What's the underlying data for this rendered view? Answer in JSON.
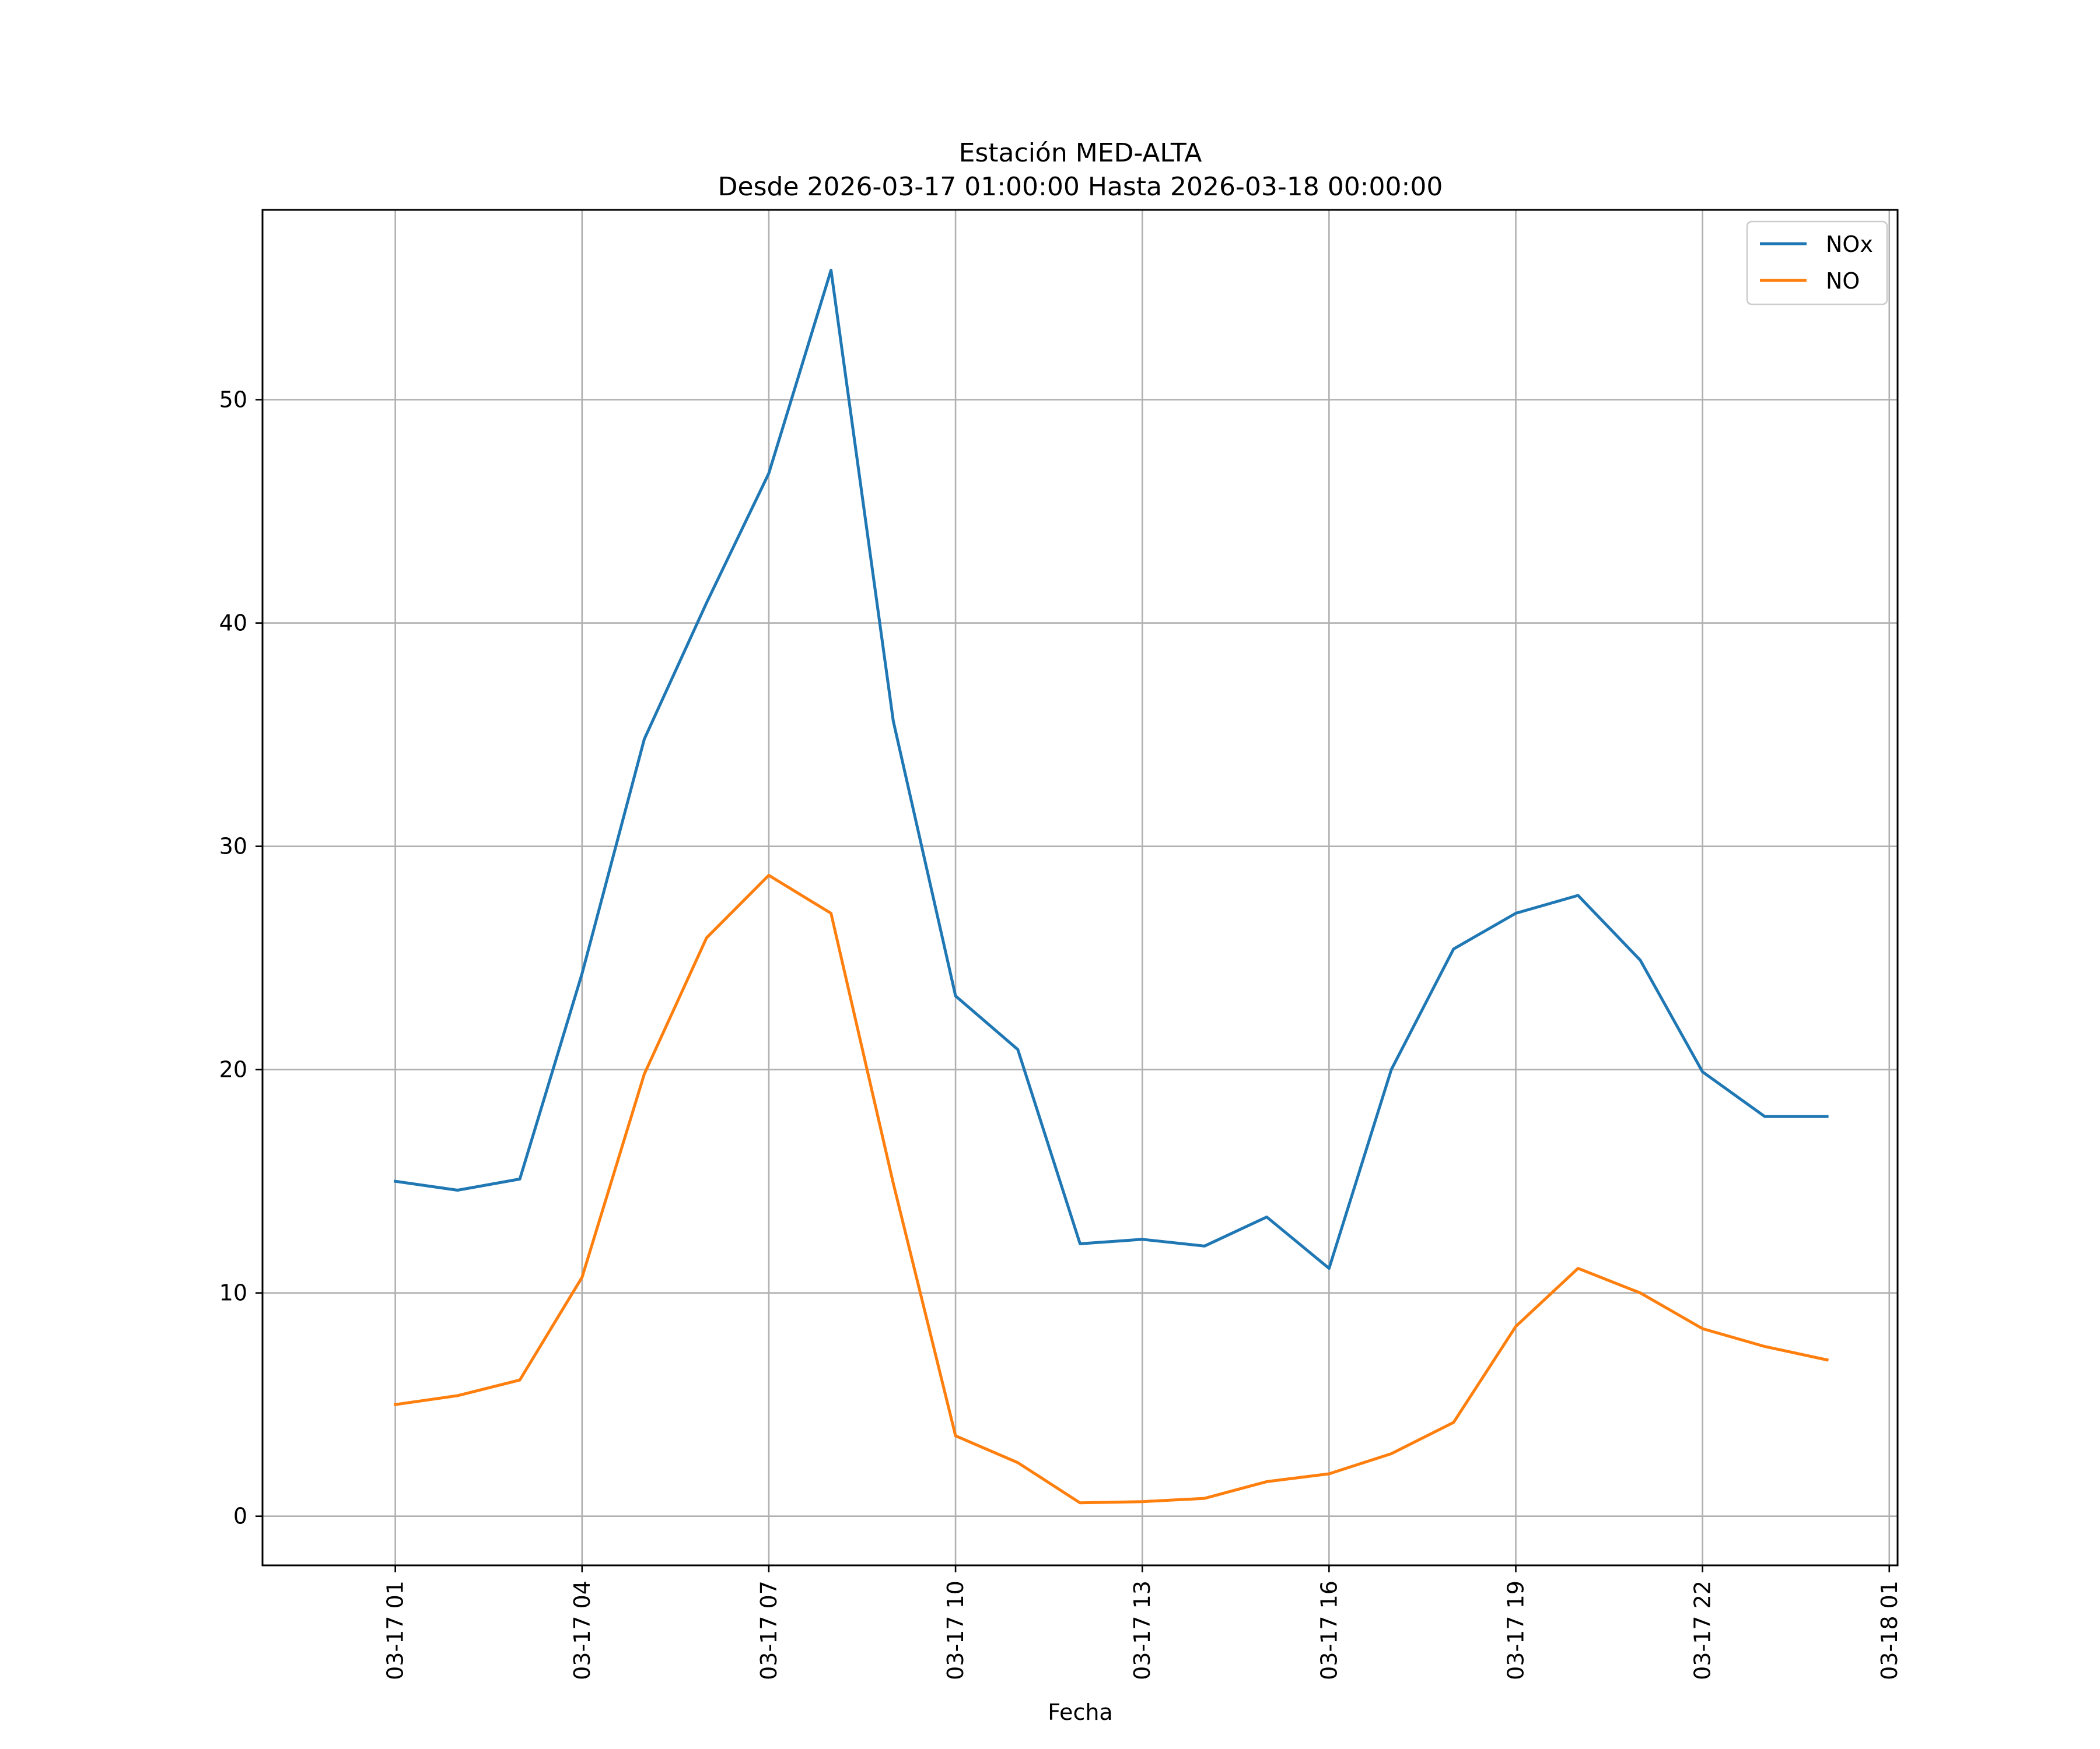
{
  "chart_data": {
    "type": "line",
    "title": "Estación MED-ALTA",
    "subtitle": "Desde 2026-03-17 01:00:00 Hasta 2026-03-18 00:00:00",
    "xlabel": "Fecha",
    "ylabel": "",
    "x": [
      "2026-03-17 01:00",
      "2026-03-17 02:00",
      "2026-03-17 03:00",
      "2026-03-17 04:00",
      "2026-03-17 05:00",
      "2026-03-17 06:00",
      "2026-03-17 07:00",
      "2026-03-17 08:00",
      "2026-03-17 09:00",
      "2026-03-17 10:00",
      "2026-03-17 11:00",
      "2026-03-17 12:00",
      "2026-03-17 13:00",
      "2026-03-17 14:00",
      "2026-03-17 15:00",
      "2026-03-17 16:00",
      "2026-03-17 17:00",
      "2026-03-17 18:00",
      "2026-03-17 19:00",
      "2026-03-17 20:00",
      "2026-03-17 21:00",
      "2026-03-17 22:00",
      "2026-03-17 23:00",
      "2026-03-18 00:00"
    ],
    "xlim": [
      "2026-03-16 22:52",
      "2026-03-18 01:08"
    ],
    "xticks": [
      "03-17 01",
      "03-17 04",
      "03-17 07",
      "03-17 10",
      "03-17 13",
      "03-17 16",
      "03-17 19",
      "03-17 22",
      "03-18 01"
    ],
    "ylim": [
      -2.2,
      58.5
    ],
    "yticks": [
      0,
      10,
      20,
      30,
      40,
      50
    ],
    "grid": true,
    "legend_position": "top-right",
    "series": [
      {
        "name": "NOx",
        "color": "#1f77b4",
        "values": [
          15.0,
          14.6,
          15.1,
          24.3,
          34.8,
          40.9,
          46.7,
          55.8,
          35.6,
          23.3,
          20.9,
          12.2,
          12.4,
          12.1,
          13.4,
          11.1,
          20.0,
          25.4,
          27.0,
          27.8,
          24.9,
          19.9,
          17.9,
          17.9
        ]
      },
      {
        "name": "NO",
        "color": "#ff7f0e",
        "values": [
          5.0,
          5.4,
          6.1,
          10.7,
          19.8,
          25.9,
          28.7,
          27.0,
          14.9,
          3.6,
          2.4,
          0.6,
          0.65,
          0.8,
          1.55,
          1.9,
          2.8,
          4.2,
          8.5,
          11.1,
          10.0,
          8.4,
          7.6,
          7.0
        ]
      }
    ]
  }
}
